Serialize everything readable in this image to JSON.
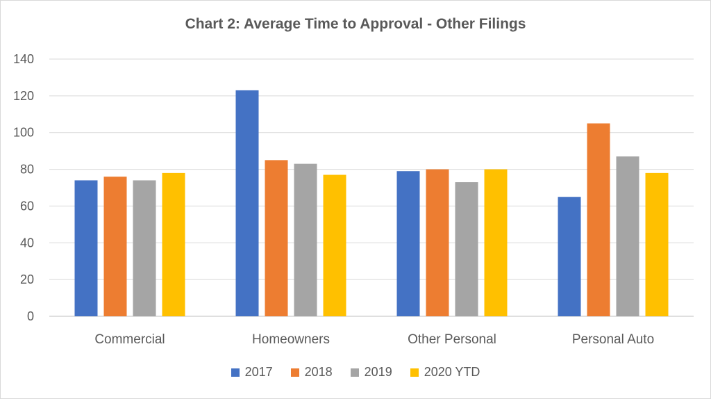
{
  "chart_data": {
    "type": "bar",
    "title": "Chart 2: Average Time to Approval - Other Filings",
    "xlabel": "",
    "ylabel": "",
    "categories": [
      "Commercial",
      "Homeowners",
      "Other Personal",
      "Personal Auto"
    ],
    "series": [
      {
        "name": "2017",
        "color": "#4472c4",
        "values": [
          74,
          123,
          79,
          65
        ]
      },
      {
        "name": "2018",
        "color": "#ed7d31",
        "values": [
          76,
          85,
          80,
          105
        ]
      },
      {
        "name": "2019",
        "color": "#a5a5a5",
        "values": [
          74,
          83,
          73,
          87
        ]
      },
      {
        "name": "2020 YTD",
        "color": "#ffc000",
        "values": [
          78,
          77,
          80,
          78
        ]
      }
    ],
    "ylim": [
      0,
      140
    ],
    "yticks": [
      "0",
      "20",
      "40",
      "60",
      "80",
      "100",
      "120",
      "140"
    ],
    "grid": true,
    "legend_position": "bottom"
  }
}
